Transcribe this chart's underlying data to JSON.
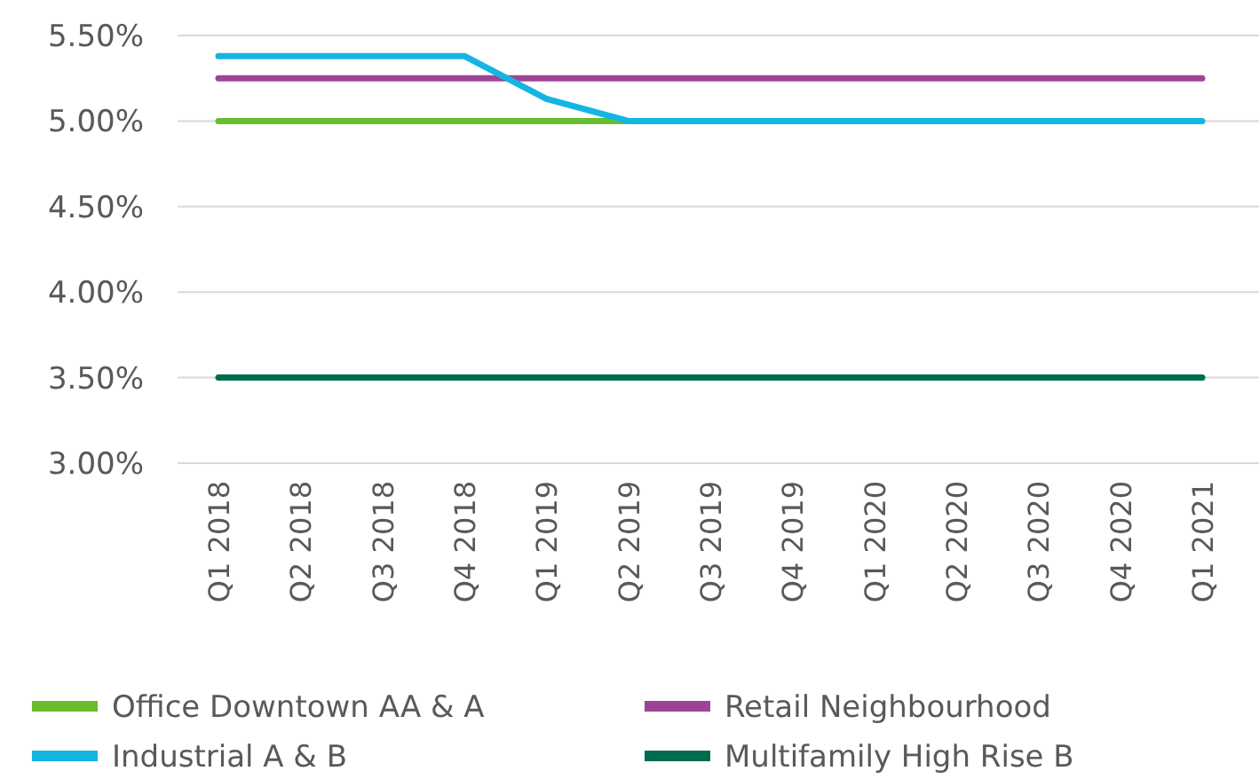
{
  "chart_data": {
    "type": "line",
    "categories": [
      "Q1 2018",
      "Q2 2018",
      "Q3 2018",
      "Q4 2018",
      "Q1 2019",
      "Q2 2019",
      "Q3 2019",
      "Q4 2019",
      "Q1 2020",
      "Q2 2020",
      "Q3 2020",
      "Q4 2020",
      "Q1 2021"
    ],
    "series": [
      {
        "name": "Office Downtown AA & A",
        "color": "#6abd2f",
        "values": [
          5,
          5,
          5,
          5,
          5,
          5,
          null,
          null,
          null,
          null,
          null,
          null,
          null
        ]
      },
      {
        "name": "Retail Neighbourhood",
        "color": "#9e4497",
        "values": [
          5.25,
          5.25,
          5.25,
          5.25,
          5.25,
          5.25,
          5.25,
          5.25,
          5.25,
          5.25,
          5.25,
          5.25,
          5.25
        ]
      },
      {
        "name": "Industrial A & B",
        "color": "#15b5e3",
        "values": [
          5.38,
          5.38,
          5.38,
          5.38,
          5.13,
          5,
          5,
          5,
          5,
          5,
          5,
          5,
          5
        ]
      },
      {
        "name": "Multifamily High Rise B",
        "color": "#006c4f",
        "values": [
          3.5,
          3.5,
          3.5,
          3.5,
          3.5,
          3.5,
          3.5,
          3.5,
          3.5,
          3.5,
          3.5,
          3.5,
          3.5
        ]
      }
    ],
    "ylim": [
      3,
      5.5
    ],
    "yticks": [
      {
        "value": 3,
        "label": "3.00%"
      },
      {
        "value": 3.5,
        "label": "3.50%"
      },
      {
        "value": 4,
        "label": "4.00%"
      },
      {
        "value": 4.5,
        "label": "4.50%"
      },
      {
        "value": 5,
        "label": "5.00%"
      },
      {
        "value": 5.5,
        "label": "5.50%"
      }
    ],
    "grid": "y",
    "legend": "bottom",
    "marker": "none",
    "line_style": "solid"
  }
}
